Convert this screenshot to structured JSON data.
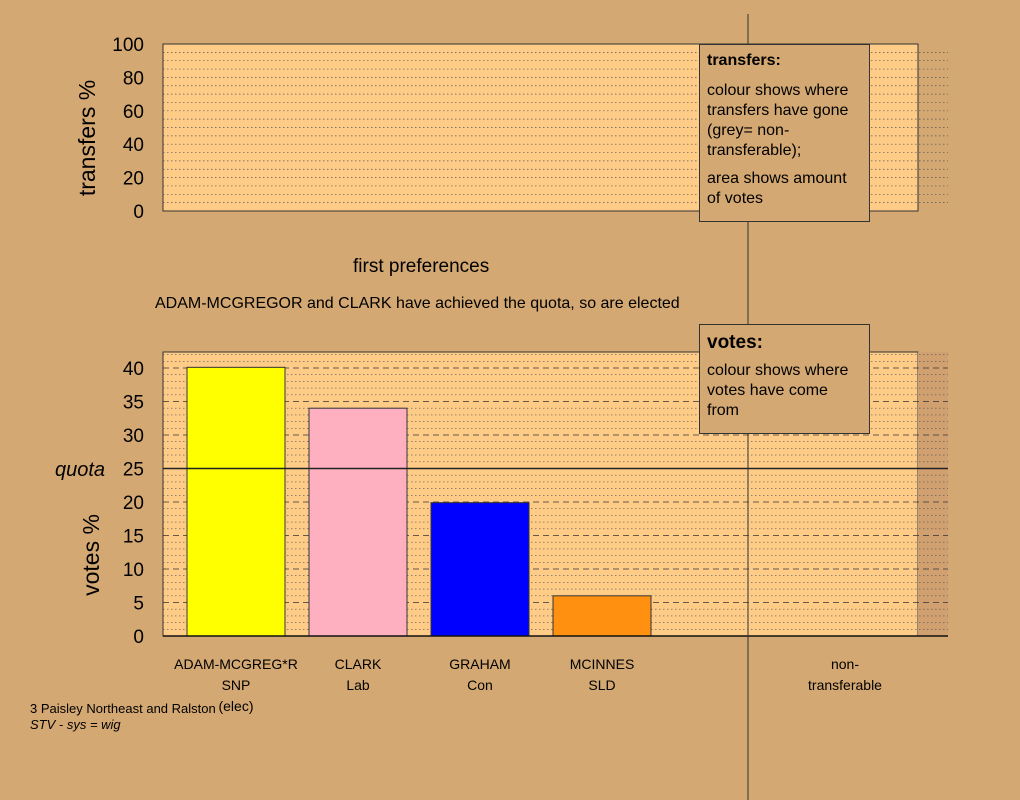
{
  "top_chart": {
    "ylabel": "transfers %",
    "ticks": [
      "0",
      "20",
      "40",
      "60",
      "80",
      "100"
    ]
  },
  "first_preferences_label": "first preferences",
  "message": "ADAM-MCGREGOR and CLARK have achieved the quota, so are elected",
  "transfers_box": {
    "title": "transfers:",
    "line1": "colour shows where transfers have gone (grey= non-transferable);",
    "line2": "area shows amount of votes"
  },
  "votes_box": {
    "title": "votes:",
    "line1": "colour shows where votes have come from"
  },
  "quota_label": "quota",
  "footer": {
    "constituency": "3 Paisley Northeast and Ralston",
    "system": "STV - sys = wig"
  },
  "colors": {
    "background": "#D4A872",
    "plot_bg": "#FFCC88",
    "ADAM-MCGREGOR": "#FFFF00",
    "CLARK": "#FFB0C0",
    "GRAHAM": "#0000FF",
    "MCINNES": "#FF9010"
  },
  "chart_data": [
    {
      "type": "bar",
      "ylabel": "votes %",
      "ylim": [
        0,
        40
      ],
      "yticks": [
        0,
        5,
        10,
        15,
        20,
        25,
        30,
        35,
        40
      ],
      "quota": 25,
      "categories": [
        {
          "name": "ADAM-MCGREG*R",
          "party": "SNP",
          "note": "(elec)",
          "color_key": "ADAM-MCGREGOR"
        },
        {
          "name": "CLARK",
          "party": "Lab",
          "note": "",
          "color_key": "CLARK"
        },
        {
          "name": "GRAHAM",
          "party": "Con",
          "note": "",
          "color_key": "GRAHAM"
        },
        {
          "name": "MCINNES",
          "party": "SLD",
          "note": "",
          "color_key": "MCINNES"
        }
      ],
      "values": [
        40.1,
        34.0,
        19.9,
        6.0
      ],
      "extra_category": {
        "line1": "non-",
        "line2": "transferable"
      }
    }
  ]
}
